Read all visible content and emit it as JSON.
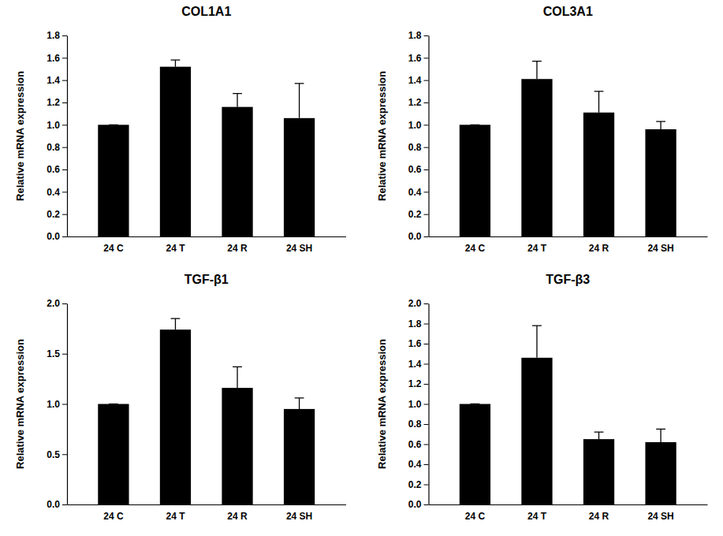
{
  "chart_data": [
    {
      "type": "bar",
      "title": "COL1A1",
      "y_label": "Relative mRNA expression",
      "categories": [
        "24 C",
        "24 T",
        "24 R",
        "24 SH"
      ],
      "values": [
        1.0,
        1.52,
        1.16,
        1.06
      ],
      "errors": [
        0,
        0.06,
        0.12,
        0.31
      ],
      "color": "#000000",
      "ylim": [
        0,
        1.8
      ],
      "yticks": [
        {
          "value": 0,
          "label": "0.0"
        },
        0.2,
        0.4,
        0.6,
        0.8,
        {
          "value": 1,
          "label": "1.0"
        },
        1.2,
        1.4,
        1.6,
        1.8
      ]
    },
    {
      "type": "bar",
      "title": "COL3A1",
      "y_label": "Relative mRNA expression",
      "categories": [
        "24 C",
        "24 T",
        "24 R",
        "24 SH"
      ],
      "values": [
        1.0,
        1.41,
        1.11,
        0.96
      ],
      "errors": [
        0,
        0.16,
        0.19,
        0.07
      ],
      "color": "#000000",
      "ylim": [
        0,
        1.8
      ],
      "yticks": [
        {
          "value": 0,
          "label": "0.0"
        },
        0.2,
        0.4,
        0.6,
        0.8,
        {
          "value": 1,
          "label": "1.0"
        },
        1.2,
        1.4,
        1.6,
        1.8
      ]
    },
    {
      "type": "bar",
      "title": "TGF-β1",
      "y_label": "Relative mRNA expression",
      "categories": [
        "24 C",
        "24 T",
        "24 R",
        "24 SH"
      ],
      "values": [
        1.0,
        1.74,
        1.16,
        0.95
      ],
      "errors": [
        0,
        0.11,
        0.21,
        0.11
      ],
      "color": "#000000",
      "ylim": [
        0,
        2
      ],
      "yticks": [
        {
          "value": 0,
          "label": "0.0"
        },
        0.5,
        {
          "value": 1,
          "label": "1.0"
        },
        1.5,
        {
          "value": 2,
          "label": "2.0"
        }
      ]
    },
    {
      "type": "bar",
      "title": "TGF-β3",
      "y_label": "Relative mRNA expression",
      "categories": [
        "24 C",
        "24 T",
        "24 R",
        "24 SH"
      ],
      "values": [
        1.0,
        1.46,
        0.65,
        0.62
      ],
      "errors": [
        0,
        0.32,
        0.07,
        0.13
      ],
      "color": "#000000",
      "ylim": [
        0,
        2
      ],
      "yticks": [
        {
          "value": 0,
          "label": "0.0"
        },
        0.2,
        0.4,
        0.6,
        0.8,
        {
          "value": 1,
          "label": "1.0"
        },
        1.2,
        1.4,
        1.6,
        1.8,
        {
          "value": 2,
          "label": "2.0"
        }
      ]
    }
  ]
}
